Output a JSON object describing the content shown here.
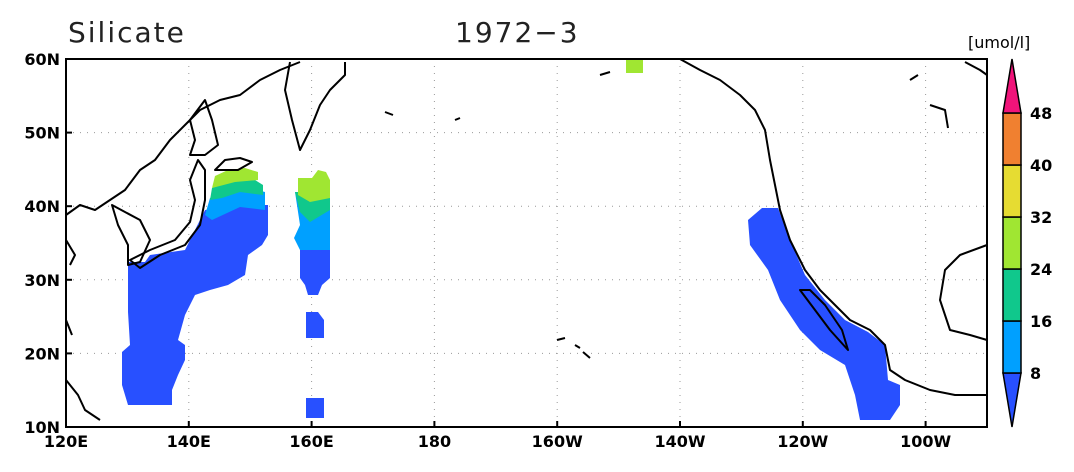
{
  "title": "Silicate",
  "date": "1972−3",
  "units": "[umol/l]",
  "map": {
    "lon_range": [
      120,
      270
    ],
    "lat_range": [
      10,
      60
    ],
    "lon_ticks": [
      {
        "value": 120,
        "label": "120E"
      },
      {
        "value": 140,
        "label": "140E"
      },
      {
        "value": 160,
        "label": "160E"
      },
      {
        "value": 180,
        "label": "180"
      },
      {
        "value": 200,
        "label": "160W"
      },
      {
        "value": 220,
        "label": "140W"
      },
      {
        "value": 240,
        "label": "120W"
      },
      {
        "value": 260,
        "label": "100W"
      }
    ],
    "lat_ticks": [
      {
        "value": 10,
        "label": "10N"
      },
      {
        "value": 20,
        "label": "20N"
      },
      {
        "value": 30,
        "label": "30N"
      },
      {
        "value": 40,
        "label": "40N"
      },
      {
        "value": 50,
        "label": "50N"
      },
      {
        "value": 60,
        "label": "60N"
      }
    ]
  },
  "colorbar": {
    "levels": [
      8,
      16,
      24,
      32,
      40,
      48
    ],
    "colors": [
      "#2850ff",
      "#00a0ff",
      "#10c88c",
      "#a0e632",
      "#e6dc32",
      "#f08030",
      "#f0147a"
    ]
  }
}
